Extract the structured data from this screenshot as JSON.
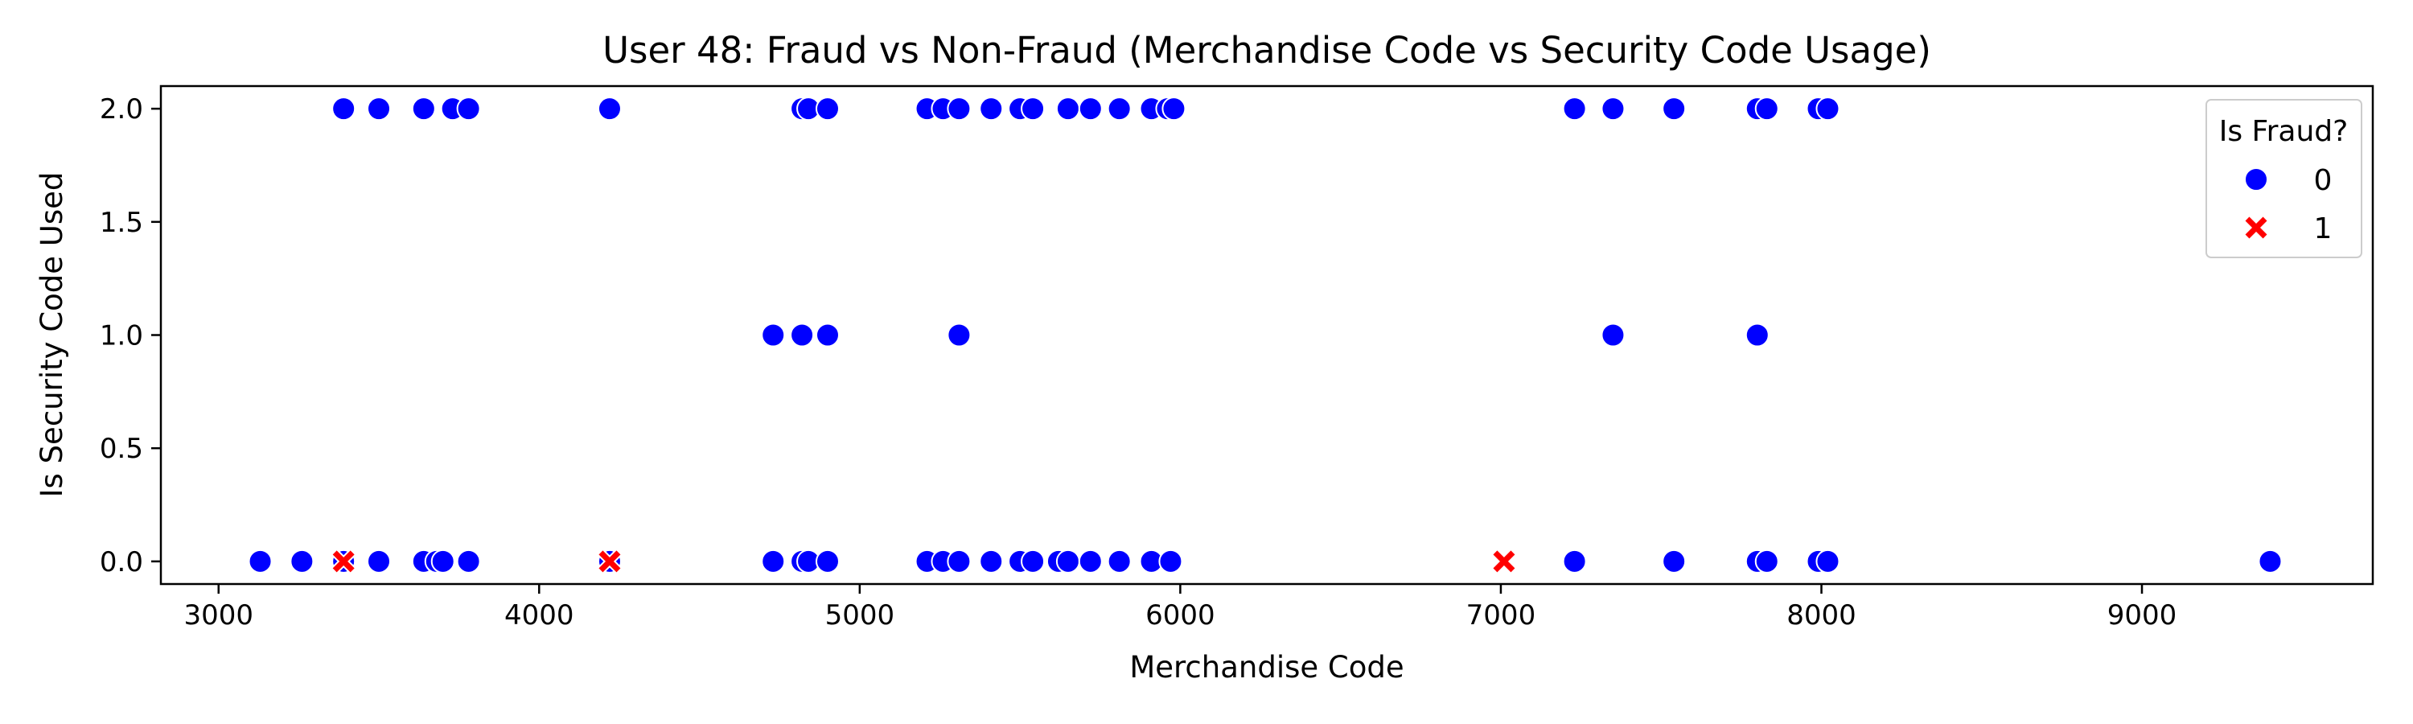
{
  "chart_data": {
    "type": "scatter",
    "title": "User 48: Fraud vs Non-Fraud (Merchandise Code vs Security Code Usage)",
    "xlabel": "Merchandise Code",
    "ylabel": "Is Security Code Used",
    "xlim": [
      2820,
      9720
    ],
    "ylim": [
      -0.1,
      2.1
    ],
    "xticks": [
      3000,
      4000,
      5000,
      6000,
      7000,
      8000,
      9000
    ],
    "yticks": [
      0.0,
      0.5,
      1.0,
      1.5,
      2.0
    ],
    "xtick_labels": [
      "3000",
      "4000",
      "5000",
      "6000",
      "7000",
      "8000",
      "9000"
    ],
    "ytick_labels": [
      "0.0",
      "0.5",
      "1.0",
      "1.5",
      "2.0"
    ],
    "grid": false,
    "legend": {
      "title": "Is Fraud?",
      "placement": "top-right",
      "entries": [
        {
          "label": "0",
          "marker": "circle",
          "color": "#0000ff"
        },
        {
          "label": "1",
          "marker": "x",
          "color": "#ff0000"
        }
      ]
    },
    "series": [
      {
        "name": "0",
        "color": "#0000ff",
        "marker": "circle",
        "points": [
          [
            3390,
            2
          ],
          [
            3500,
            2
          ],
          [
            3640,
            2
          ],
          [
            3730,
            2
          ],
          [
            3780,
            2
          ],
          [
            4220,
            2
          ],
          [
            4820,
            2
          ],
          [
            4840,
            2
          ],
          [
            4900,
            2
          ],
          [
            5210,
            2
          ],
          [
            5260,
            2
          ],
          [
            5310,
            2
          ],
          [
            5410,
            2
          ],
          [
            5500,
            2
          ],
          [
            5540,
            2
          ],
          [
            5650,
            2
          ],
          [
            5720,
            2
          ],
          [
            5810,
            2
          ],
          [
            5910,
            2
          ],
          [
            5960,
            2
          ],
          [
            5980,
            2
          ],
          [
            7230,
            2
          ],
          [
            7350,
            2
          ],
          [
            7540,
            2
          ],
          [
            7800,
            2
          ],
          [
            7830,
            2
          ],
          [
            7990,
            2
          ],
          [
            8020,
            2
          ],
          [
            4730,
            1
          ],
          [
            4820,
            1
          ],
          [
            4900,
            1
          ],
          [
            5310,
            1
          ],
          [
            7350,
            1
          ],
          [
            7800,
            1
          ],
          [
            3130,
            0
          ],
          [
            3260,
            0
          ],
          [
            3390,
            0
          ],
          [
            3500,
            0
          ],
          [
            3640,
            0
          ],
          [
            3680,
            0
          ],
          [
            3700,
            0
          ],
          [
            3780,
            0
          ],
          [
            4220,
            0
          ],
          [
            4730,
            0
          ],
          [
            4820,
            0
          ],
          [
            4840,
            0
          ],
          [
            4900,
            0
          ],
          [
            5210,
            0
          ],
          [
            5260,
            0
          ],
          [
            5310,
            0
          ],
          [
            5410,
            0
          ],
          [
            5500,
            0
          ],
          [
            5540,
            0
          ],
          [
            5620,
            0
          ],
          [
            5650,
            0
          ],
          [
            5720,
            0
          ],
          [
            5810,
            0
          ],
          [
            5910,
            0
          ],
          [
            5970,
            0
          ],
          [
            7230,
            0
          ],
          [
            7540,
            0
          ],
          [
            7800,
            0
          ],
          [
            7830,
            0
          ],
          [
            7990,
            0
          ],
          [
            8020,
            0
          ],
          [
            9400,
            0
          ]
        ]
      },
      {
        "name": "1",
        "color": "#ff0000",
        "marker": "x",
        "points": [
          [
            3390,
            0
          ],
          [
            4220,
            0
          ],
          [
            7010,
            0
          ]
        ]
      }
    ]
  }
}
